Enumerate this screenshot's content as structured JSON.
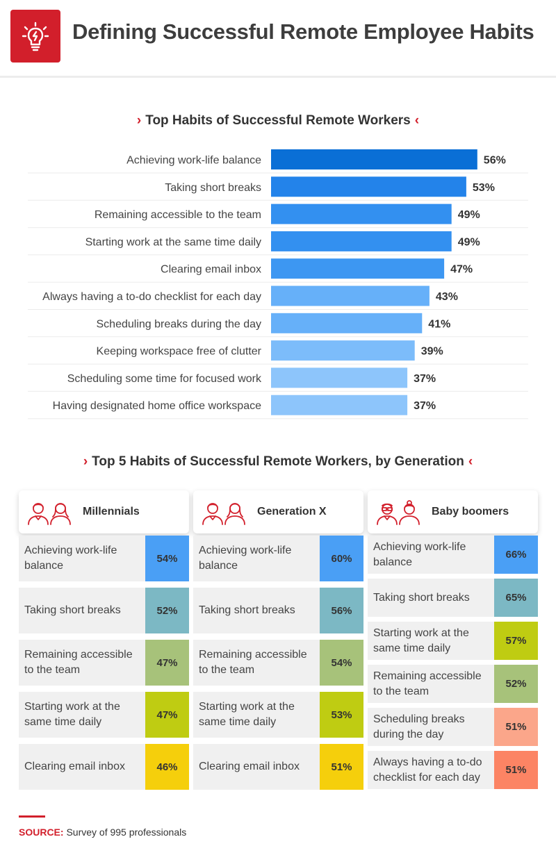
{
  "header": {
    "title": "Defining Successful Remote Employee Habits",
    "logo_icon": "lightbulb-icon"
  },
  "colors": {
    "accent": "#d21f2b",
    "bar_dark": "#0a6fd6",
    "bar_light": "#91c4fb",
    "row_bg": "#f0f0f0"
  },
  "chart_data": [
    {
      "type": "bar",
      "orientation": "horizontal",
      "title": "Top Habits of Successful Remote Workers",
      "categories": [
        "Achieving work-life balance",
        "Taking short breaks",
        "Remaining accessible to the team",
        "Starting work at the same time daily",
        "Clearing email inbox",
        "Always having a to-do checklist for each day",
        "Scheduling breaks during the day",
        "Keeping workspace free of clutter",
        "Scheduling some time for focused work",
        "Having designated home office workspace"
      ],
      "values": [
        56,
        53,
        49,
        49,
        47,
        43,
        41,
        39,
        37,
        37
      ],
      "value_suffix": "%",
      "colors": [
        "#0a6fd6",
        "#2383ea",
        "#3390f0",
        "#3390f0",
        "#3d97f2",
        "#66b0f9",
        "#66b0f9",
        "#7cbcfa",
        "#8dc5fb",
        "#8dc5fb"
      ]
    },
    {
      "type": "table",
      "title": "Top 5 Habits of Successful Remote Workers, by Generation",
      "groups": [
        {
          "name": "Millennials",
          "icon": "people-icon",
          "rows": [
            {
              "habit": "Achieving work-life balance",
              "value": "54%",
              "color": "#4a9ff5"
            },
            {
              "habit": "Taking short breaks",
              "value": "52%",
              "color": "#7cb8c4"
            },
            {
              "habit": "Remaining accessible to the team",
              "value": "47%",
              "color": "#a7c27a"
            },
            {
              "habit": "Starting work at the same time daily",
              "value": "47%",
              "color": "#bfcc12"
            },
            {
              "habit": "Clearing email inbox",
              "value": "46%",
              "color": "#f5cf0c"
            }
          ]
        },
        {
          "name": "Generation X",
          "icon": "people-icon",
          "rows": [
            {
              "habit": "Achieving work-life balance",
              "value": "60%",
              "color": "#4a9ff5"
            },
            {
              "habit": "Taking short breaks",
              "value": "56%",
              "color": "#7cb8c4"
            },
            {
              "habit": "Remaining accessible to the team",
              "value": "54%",
              "color": "#a7c27a"
            },
            {
              "habit": "Starting work at the same time daily",
              "value": "53%",
              "color": "#bfcc12"
            },
            {
              "habit": "Clearing email inbox",
              "value": "51%",
              "color": "#f5cf0c"
            }
          ]
        },
        {
          "name": "Baby boomers",
          "icon": "elderly-people-icon",
          "rows": [
            {
              "habit": "Achieving work-life balance",
              "value": "66%",
              "color": "#4a9ff5"
            },
            {
              "habit": "Taking short breaks",
              "value": "65%",
              "color": "#7cb8c4"
            },
            {
              "habit": "Starting work at the same time daily",
              "value": "57%",
              "color": "#bfcc12"
            },
            {
              "habit": "Remaining accessible to the team",
              "value": "52%",
              "color": "#a7c27a"
            },
            {
              "habit": "Scheduling breaks during the day",
              "value": "51%",
              "color": "#fba68a"
            },
            {
              "habit": "Always having a to-do checklist for each day",
              "value": "51%",
              "color": "#fc8464"
            }
          ]
        }
      ]
    }
  ],
  "source": {
    "label": "SOURCE:",
    "text": "Survey of 995 professionals"
  }
}
